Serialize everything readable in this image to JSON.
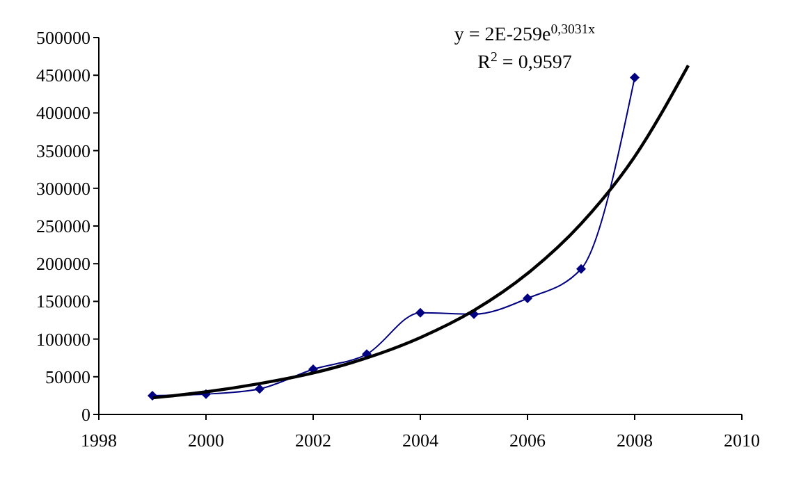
{
  "chart_data": {
    "type": "line",
    "annotations": [
      "y = 2E-259e$^{0,3031x}$",
      "R$^{2}$ = 0,9597"
    ],
    "xlim": [
      1998,
      2010
    ],
    "xticks": [
      1998,
      2000,
      2002,
      2004,
      2006,
      2008,
      2010
    ],
    "ylim": [
      0,
      500000
    ],
    "yticks": [
      0,
      50000,
      100000,
      150000,
      200000,
      250000,
      300000,
      350000,
      400000,
      450000,
      500000
    ],
    "grid": false,
    "series": [
      {
        "color": "#000080",
        "marker": "diamond",
        "line_style": "solid",
        "x": [
          1999,
          2000,
          2001,
          2002,
          2003,
          2004,
          2005,
          2006,
          2007,
          2008
        ],
        "values": [
          25000,
          27000,
          34000,
          60000,
          80000,
          135000,
          133000,
          154000,
          193000,
          447000
        ]
      },
      {
        "color": "#000000",
        "marker": "none",
        "line_style": "solid",
        "x": [
          1999,
          2000,
          2001,
          2002,
          2003,
          2004,
          2005,
          2006,
          2007,
          2008,
          2009
        ],
        "values": [
          22000,
          30000,
          41000,
          55000,
          75000,
          102000,
          138000,
          187000,
          253000,
          342000,
          463000
        ]
      }
    ]
  }
}
